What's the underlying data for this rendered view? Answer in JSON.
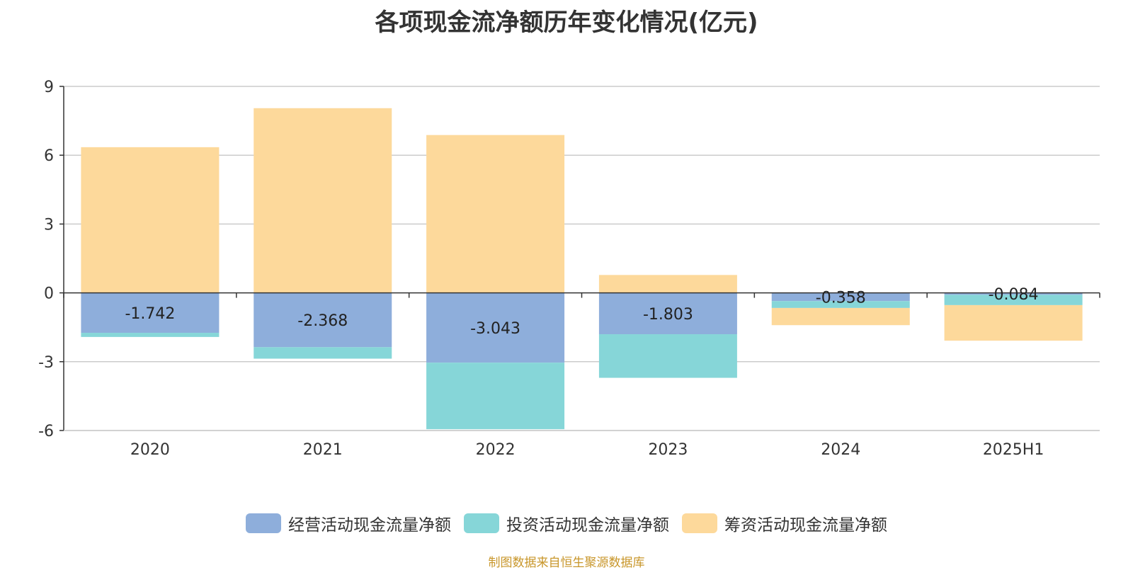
{
  "chart_data": {
    "type": "bar",
    "stacked": true,
    "title": "各项现金流净额历年变化情况(亿元)",
    "categories": [
      "2020",
      "2021",
      "2022",
      "2023",
      "2024",
      "2025H1"
    ],
    "ylim": [
      -6,
      9
    ],
    "yticks": [
      9,
      6,
      3,
      0,
      -3,
      -6
    ],
    "grid": true,
    "legend_position": "bottom",
    "series": [
      {
        "name": "经营活动现金流量净额",
        "color": "#8eaedb",
        "values": [
          -1.742,
          -2.368,
          -3.043,
          -1.803,
          -0.358,
          -0.084
        ],
        "labels": [
          "-1.742",
          "-2.368",
          "-3.043",
          "-1.803",
          "-0.358",
          "-0.084"
        ]
      },
      {
        "name": "投资活动现金流量净额",
        "color": "#86d6d8",
        "values": [
          -0.18,
          -0.5,
          -2.9,
          -1.9,
          -0.3,
          -0.45
        ]
      },
      {
        "name": "筹资活动现金流量净额",
        "color": "#fdd99b",
        "values": [
          6.35,
          8.05,
          6.88,
          0.78,
          -0.75,
          -1.55
        ]
      }
    ]
  },
  "source": "制图数据来自恒生聚源数据库"
}
